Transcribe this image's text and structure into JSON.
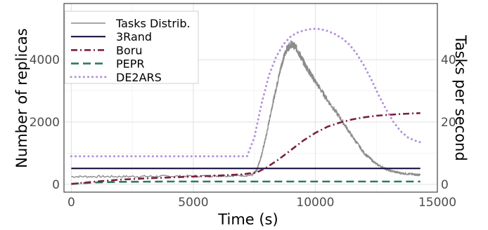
{
  "chart_data": {
    "type": "line",
    "xlabel": "Time (s)",
    "ylabel": "Number of replicas",
    "y2label": "Tasks per second",
    "xlim": [
      -300,
      15000
    ],
    "ylim": [
      -250,
      5800
    ],
    "y2lim": [
      -2.5,
      58
    ],
    "x_ticks": [
      0,
      5000,
      10000,
      15000
    ],
    "y_ticks": [
      0,
      2000,
      4000
    ],
    "y2_ticks": [
      0,
      20,
      40
    ],
    "grid": true,
    "legend_position": "top-left",
    "series": [
      {
        "name": "Tasks Distrib.",
        "axis": "right",
        "style": "solid-noisy",
        "color": "#8c8c8c",
        "x": [
          0,
          2000,
          4000,
          6000,
          7400,
          7600,
          7800,
          8000,
          8200,
          8400,
          8600,
          8800,
          9000,
          9200,
          9400,
          9600,
          9800,
          10000,
          10500,
          11000,
          11500,
          12000,
          12500,
          13000,
          13500,
          14000,
          14300
        ],
        "y": [
          2.5,
          2.5,
          2.6,
          2.7,
          2.9,
          4.5,
          9.5,
          16,
          24,
          31,
          38,
          43,
          45,
          44,
          41,
          38,
          35.5,
          33,
          27,
          21.5,
          15.5,
          10,
          6.5,
          4.5,
          3.6,
          3.2,
          3.0
        ]
      },
      {
        "name": "3Rand",
        "axis": "left",
        "style": "solid",
        "color": "#1a1440",
        "x": [
          0,
          14300
        ],
        "y": [
          510,
          510
        ]
      },
      {
        "name": "Boru",
        "axis": "left",
        "style": "dashdot",
        "color": "#7a1f45",
        "x": [
          0,
          1000,
          2000,
          3000,
          4000,
          5000,
          6000,
          7000,
          7600,
          8000,
          8500,
          9000,
          9500,
          10000,
          10500,
          11000,
          11500,
          12000,
          12500,
          13000,
          13500,
          14000,
          14300
        ],
        "y": [
          10,
          90,
          150,
          190,
          220,
          250,
          280,
          320,
          380,
          540,
          800,
          1100,
          1400,
          1650,
          1850,
          1980,
          2080,
          2150,
          2200,
          2230,
          2255,
          2275,
          2285
        ]
      },
      {
        "name": "PEPR",
        "axis": "left",
        "style": "dashed",
        "color": "#2e7a5e",
        "x": [
          0,
          1000,
          2000,
          4000,
          8000,
          14300
        ],
        "y": [
          15,
          60,
          80,
          90,
          90,
          90
        ]
      },
      {
        "name": "DE2ARS",
        "axis": "left",
        "style": "dotted",
        "color": "#b38fdc",
        "x": [
          0,
          2000,
          4000,
          6000,
          7200,
          7500,
          7800,
          8100,
          8400,
          8700,
          9000,
          9300,
          9600,
          9900,
          10200,
          10500,
          10800,
          11100,
          11400,
          11700,
          12000,
          12300,
          12600,
          12900,
          13200,
          13500,
          13800,
          14100,
          14300
        ],
        "y": [
          900,
          900,
          900,
          900,
          900,
          1500,
          2600,
          3500,
          4100,
          4500,
          4750,
          4880,
          4950,
          4990,
          4980,
          4920,
          4820,
          4680,
          4480,
          4180,
          3800,
          3350,
          2850,
          2400,
          2000,
          1700,
          1500,
          1400,
          1350
        ]
      }
    ]
  }
}
